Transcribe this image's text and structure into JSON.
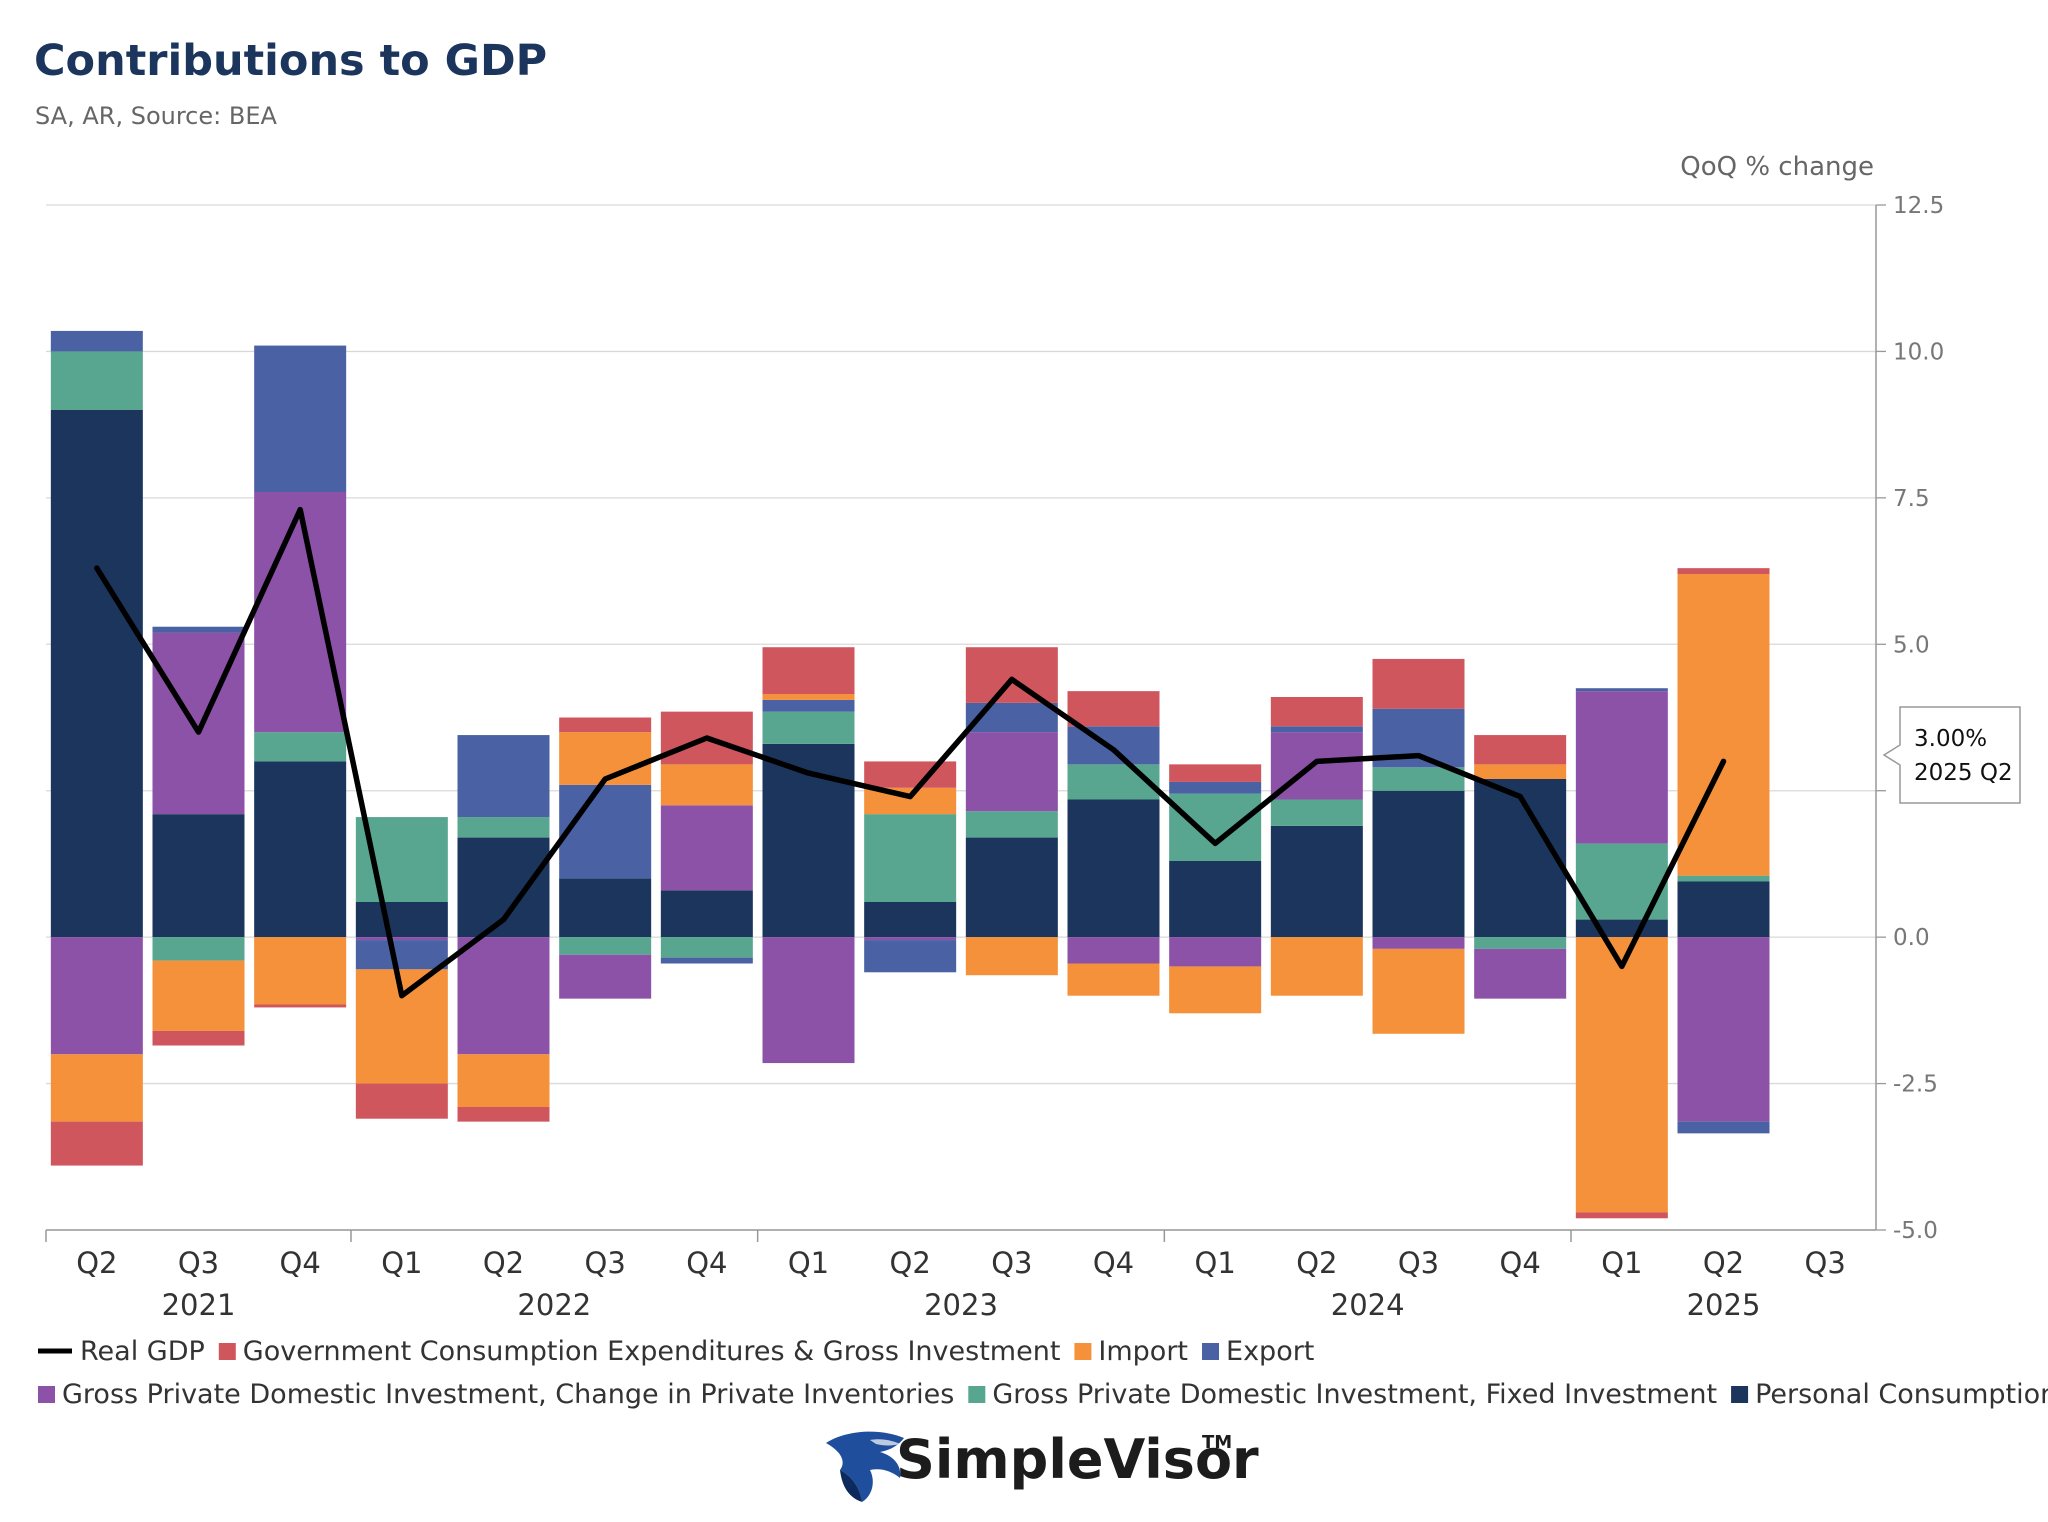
{
  "header": {
    "title": "Contributions to GDP",
    "subtitle": "SA, AR, Source: BEA",
    "unit_label": "QoQ % change"
  },
  "callout": {
    "value": "3.00%",
    "period": "2025 Q2"
  },
  "logo": {
    "text": "SimpleVisor",
    "trademark": "TM"
  },
  "colors": {
    "government": "#d0565d",
    "import": "#f5913a",
    "export": "#4a62a4",
    "inventories": "#8c52a8",
    "fixed_investment": "#58a590",
    "pce": "#1b355d",
    "real_gdp": "#000000",
    "grid": "#d9d9d9"
  },
  "chart_data": {
    "type": "bar",
    "stacked": true,
    "title": "Contributions to GDP",
    "subtitle": "SA, AR, Source: BEA",
    "ylabel": "QoQ % change",
    "ylim": [
      -5,
      12.5
    ],
    "yticks": [
      "12.5",
      "10.0",
      "7.5",
      "5.0",
      "0.0",
      "-2.5",
      "-5.0"
    ],
    "y_axis_position": "right",
    "categories": [
      "Q2",
      "Q3",
      "Q4",
      "Q1",
      "Q2",
      "Q3",
      "Q4",
      "Q1",
      "Q2",
      "Q3",
      "Q4",
      "Q1",
      "Q2",
      "Q3",
      "Q4",
      "Q1",
      "Q2",
      "Q3"
    ],
    "years": [
      {
        "label": "2021",
        "start": 0,
        "end": 2
      },
      {
        "label": "2022",
        "start": 3,
        "end": 6
      },
      {
        "label": "2023",
        "start": 7,
        "end": 10
      },
      {
        "label": "2024",
        "start": 11,
        "end": 14
      },
      {
        "label": "2025",
        "start": 15,
        "end": 17
      }
    ],
    "series": [
      {
        "name": "Personal Consumption Expenditures",
        "color_key": "pce",
        "values": [
          9.0,
          2.1,
          3.0,
          0.6,
          1.7,
          1.0,
          0.8,
          3.3,
          0.6,
          1.7,
          2.35,
          1.3,
          1.9,
          2.5,
          2.7,
          0.3,
          0.95,
          null
        ]
      },
      {
        "name": "Gross Private Domestic Investment, Fixed Investment",
        "color_key": "fixed_investment",
        "values": [
          1.0,
          -0.4,
          0.5,
          1.45,
          0.35,
          -0.3,
          -0.35,
          0.55,
          1.5,
          0.45,
          0.6,
          1.15,
          0.45,
          0.4,
          -0.2,
          1.3,
          0.1,
          null
        ]
      },
      {
        "name": "Gross Private Domestic Investment, Change in Private Inventories",
        "color_key": "inventories",
        "values": [
          -2.0,
          3.1,
          4.1,
          -0.05,
          -2.0,
          -0.75,
          1.45,
          -2.15,
          -0.05,
          1.35,
          -0.45,
          -0.5,
          1.15,
          -0.2,
          -0.85,
          2.6,
          -3.15,
          null
        ]
      },
      {
        "name": "Export",
        "color_key": "export",
        "values": [
          0.35,
          0.1,
          2.5,
          -0.5,
          1.4,
          1.6,
          -0.1,
          0.2,
          -0.55,
          0.5,
          0.65,
          0.2,
          0.1,
          1.0,
          0.0,
          0.05,
          -0.2,
          null
        ]
      },
      {
        "name": "Import",
        "color_key": "import",
        "values": [
          -1.15,
          -1.2,
          -1.15,
          -1.95,
          -0.9,
          0.9,
          0.7,
          0.1,
          0.45,
          -0.65,
          -0.55,
          -0.8,
          -1.0,
          -1.45,
          0.25,
          -4.7,
          5.15,
          null
        ]
      },
      {
        "name": "Government Consumption Expenditures & Gross Investment",
        "color_key": "government",
        "values": [
          -0.75,
          -0.25,
          -0.05,
          -0.6,
          -0.25,
          0.25,
          0.9,
          0.8,
          0.45,
          0.95,
          0.6,
          0.3,
          0.5,
          0.85,
          0.5,
          -0.1,
          0.1,
          null
        ]
      }
    ],
    "line": {
      "name": "Real GDP",
      "color_key": "real_gdp",
      "values": [
        6.3,
        3.5,
        7.3,
        -1.0,
        0.3,
        2.7,
        3.4,
        2.8,
        2.4,
        4.4,
        3.2,
        1.6,
        3.0,
        3.1,
        2.4,
        -0.5,
        3.0,
        null
      ]
    },
    "legend": [
      {
        "label": "Real GDP",
        "kind": "line",
        "color_key": "real_gdp"
      },
      {
        "label": "Government Consumption Expenditures & Gross Investment",
        "kind": "box",
        "color_key": "government"
      },
      {
        "label": "Import",
        "kind": "box",
        "color_key": "import"
      },
      {
        "label": "Export",
        "kind": "box",
        "color_key": "export"
      },
      {
        "label": "Gross Private Domestic Investment, Change in Private Inventories",
        "kind": "box",
        "color_key": "inventories"
      },
      {
        "label": "Gross Private Domestic Investment, Fixed Investment",
        "kind": "box",
        "color_key": "fixed_investment"
      },
      {
        "label": "Personal Consumption Expenditures",
        "kind": "box",
        "color_key": "pce"
      }
    ],
    "legend_position": "bottom"
  }
}
